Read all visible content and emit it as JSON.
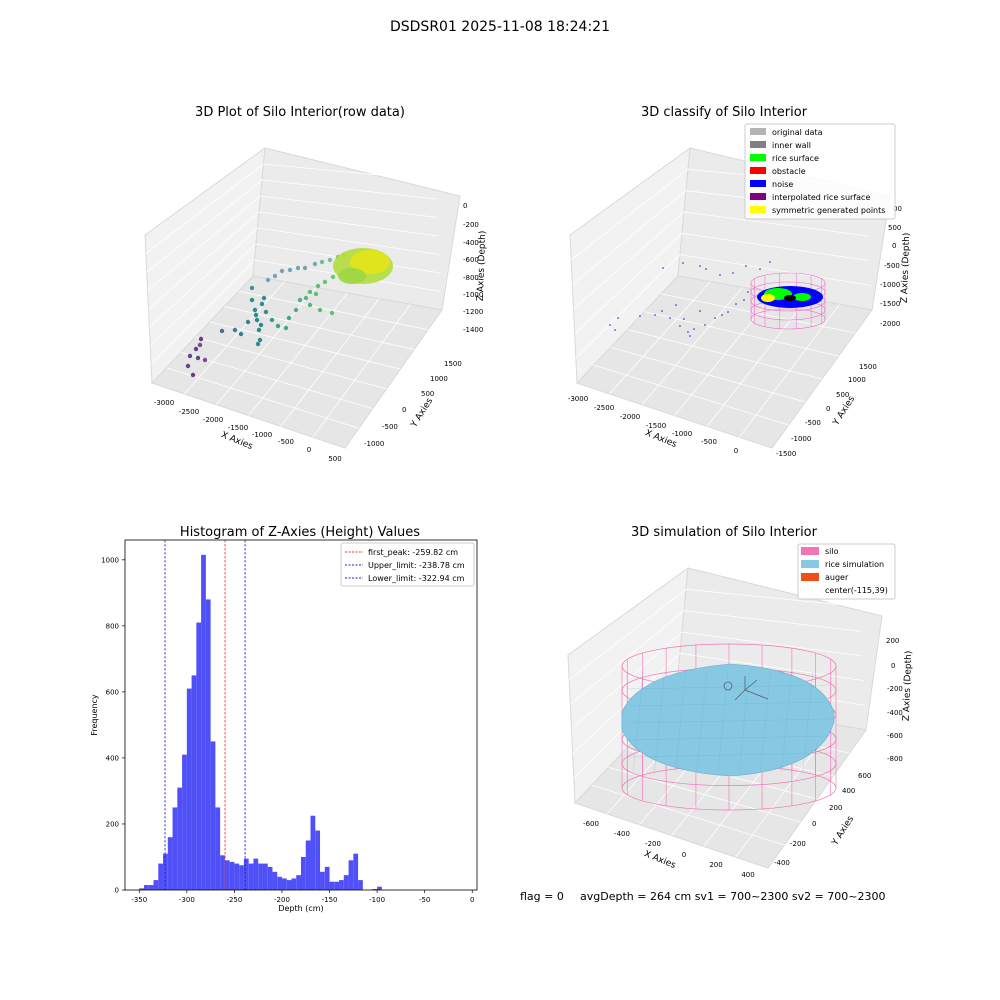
{
  "figure": {
    "suptitle": "DSDSR01 2025-11-08 18:24:21",
    "status_flag": "flag = 0",
    "status_depth": "avgDepth = 264 cm  sv1 = 700~2300  sv2 = 700~2300"
  },
  "colors": {
    "bars": "#5050f8",
    "first_peak": "#e03030",
    "limits": "#2020c0",
    "silo": "#f472b6",
    "rice_sim": "#87c9e3",
    "auger": "#f04d1a"
  },
  "chart_data": [
    {
      "type": "scatter3d",
      "title": "3D Plot of Silo Interior(row data)",
      "xlabel": "X Axies",
      "ylabel": "Y Axies",
      "zlabel": "Z Axies (Depth)",
      "x_ticks": [
        "-3000",
        "-2500",
        "-2000",
        "-1500",
        "-1000",
        "-500",
        "0",
        "500"
      ],
      "y_ticks": [
        "-1000",
        "-500",
        "0",
        "500",
        "1000",
        "1500"
      ],
      "z_ticks": [
        "0",
        "-200",
        "-400",
        "-600",
        "-800",
        "-1000",
        "-1200",
        "-1400"
      ],
      "xlim": [
        -3000,
        500
      ],
      "ylim": [
        -1000,
        1500
      ],
      "zlim": [
        -1400,
        0
      ],
      "colormap": "viridis (by depth)"
    },
    {
      "type": "scatter3d",
      "title": "3D classify of Silo Interior",
      "xlabel": "X Axies",
      "ylabel": "Y Axies",
      "zlabel": "Z Axies (Depth)",
      "x_ticks": [
        "-3000",
        "-2500",
        "-2000",
        "-1500",
        "-1000",
        "-500",
        "0"
      ],
      "y_ticks": [
        "-1500",
        "-1000",
        "-500",
        "0",
        "500",
        "1000",
        "1500"
      ],
      "z_ticks": [
        "500",
        "0",
        "-500",
        "-1000",
        "-1500",
        "-2000"
      ],
      "z_top_partial": "00",
      "xlim": [
        -3000,
        0
      ],
      "ylim": [
        -1500,
        1500
      ],
      "zlim": [
        -2000,
        500
      ],
      "legend_position": "top-right",
      "legend": [
        {
          "label": "original data",
          "color": "#b3b3b3"
        },
        {
          "label": "inner wall",
          "color": "#808080"
        },
        {
          "label": "rice surface",
          "color": "#00ff00"
        },
        {
          "label": "obstacle",
          "color": "#ff0000"
        },
        {
          "label": "noise",
          "color": "#0000ff"
        },
        {
          "label": "interpolated rice surface",
          "color": "#800080"
        },
        {
          "label": "symmetric generated points",
          "color": "#ffff00"
        }
      ]
    },
    {
      "type": "bar",
      "title": "Histogram of Z-Axies (Height) Values",
      "xlabel": "Depth (cm)",
      "ylabel": "Frequency",
      "xlim": [
        -365,
        5
      ],
      "ylim": [
        0,
        1060
      ],
      "x_ticks": [
        -350,
        -300,
        -250,
        -200,
        -150,
        -100,
        -50,
        0
      ],
      "y_ticks": [
        0,
        200,
        400,
        600,
        800,
        1000
      ],
      "bin_start": -350,
      "bin_width": 5,
      "values": [
        5,
        15,
        15,
        30,
        80,
        110,
        160,
        250,
        310,
        410,
        610,
        650,
        810,
        1015,
        880,
        450,
        250,
        105,
        90,
        85,
        80,
        75,
        95,
        80,
        95,
        80,
        80,
        70,
        55,
        40,
        35,
        30,
        35,
        45,
        100,
        150,
        225,
        180,
        55,
        70,
        25,
        25,
        30,
        45,
        90,
        110,
        30,
        0,
        0,
        3,
        10
      ],
      "lines": [
        {
          "label": "first_peak: -259.82 cm",
          "x": -259.82,
          "color": "#e03030"
        },
        {
          "label": "Upper_limit: -238.78 cm",
          "x": -238.78,
          "color": "#2020c0"
        },
        {
          "label": "Lower_limit: -322.94 cm",
          "x": -322.94,
          "color": "#2020c0"
        }
      ],
      "legend_position": "top-right"
    },
    {
      "type": "surface3d",
      "title": "3D simulation of Silo Interior",
      "xlabel": "X Axies",
      "ylabel": "Y Axies",
      "zlabel": "Z Axies (Depth)",
      "x_ticks": [
        "-600",
        "-400",
        "-200",
        "0",
        "200",
        "400"
      ],
      "y_ticks": [
        "-400",
        "-200",
        "0",
        "200",
        "400",
        "600"
      ],
      "z_ticks": [
        "200",
        "0",
        "-200",
        "-400",
        "-600",
        "-800"
      ],
      "xlim": [
        -600,
        400
      ],
      "ylim": [
        -400,
        600
      ],
      "zlim": [
        -800,
        200
      ],
      "legend_position": "top-right",
      "legend": [
        {
          "label": "silo",
          "color": "#f472b6"
        },
        {
          "label": "rice simulation",
          "color": "#87c9e3"
        },
        {
          "label": "auger",
          "color": "#f04d1a"
        },
        {
          "label": "center(-115,39)",
          "color": ""
        }
      ]
    }
  ]
}
